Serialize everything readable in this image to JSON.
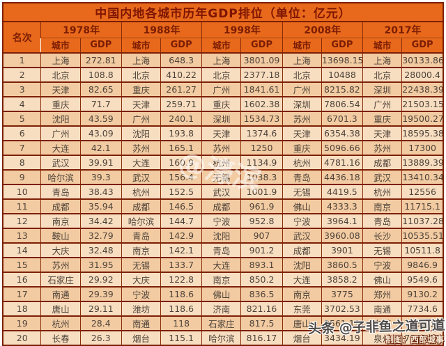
{
  "title": "中国内地各城市历年GDP排位（单位：亿元）",
  "table": {
    "rank_header": "名次",
    "city_header": "城市",
    "gdp_header": "GDP",
    "years": [
      "1978年",
      "1988年",
      "1998年",
      "2008年",
      "2017年"
    ]
  },
  "watermarks": {
    "center": "@濠滨",
    "bottom_right_line1": "头条 @子非鱼之道可道",
    "bottom_right_line2": "制图：西部城事"
  },
  "colors": {
    "header_bg": "#e8691b",
    "title_text": "#7e1502",
    "header_text": "#7b1d04",
    "row_odd_bg": "#f2cba2",
    "row_even_bg": "#f8dec1",
    "border": "#7c2007",
    "cell_text": "#4e4339"
  },
  "chart_data": {
    "type": "table",
    "title": "中国内地各城市历年GDP排位（单位：亿元）",
    "columns": [
      "名次",
      "1978年 城市",
      "1978年 GDP",
      "1988年 城市",
      "1988年 GDP",
      "1998年 城市",
      "1998年 GDP",
      "2008年 城市",
      "2008年 GDP",
      "2017年 城市",
      "2017年 GDP"
    ],
    "rows": [
      [
        "1",
        "上海",
        "272.81",
        "上海",
        "648.3",
        "上海",
        "3801.09",
        "上海",
        "13698.15",
        "上海",
        "30133.86"
      ],
      [
        "2",
        "北京",
        "108.8",
        "北京",
        "410.22",
        "北京",
        "2377.18",
        "北京",
        "10488",
        "北京",
        "28000.4"
      ],
      [
        "3",
        "天津",
        "82.65",
        "重庆",
        "261.27",
        "广州",
        "1841.61",
        "广州",
        "8215.82",
        "深圳",
        "22438.39"
      ],
      [
        "4",
        "重庆",
        "71.7",
        "天津",
        "259.71",
        "重庆",
        "1602.38",
        "深圳",
        "7806.54",
        "广州",
        "21503.15"
      ],
      [
        "5",
        "沈阳",
        "43.59",
        "广州",
        "240.1",
        "深圳",
        "1534.73",
        "苏州",
        "6701.3",
        "重庆",
        "19500.27"
      ],
      [
        "6",
        "广州",
        "43.09",
        "沈阳",
        "193.8",
        "天津",
        "1374.6",
        "天津",
        "6354.38",
        "天津",
        "18595.38"
      ],
      [
        "7",
        "大连",
        "42.1",
        "苏州",
        "165.1",
        "苏州",
        "1250",
        "重庆",
        "5096.66",
        "苏州",
        "17300"
      ],
      [
        "8",
        "武汉",
        "39.91",
        "大连",
        "160.9",
        "杭州",
        "1134.9",
        "杭州",
        "4781.16",
        "成都",
        "13889.39"
      ],
      [
        "9",
        "哈尔滨",
        "39.3",
        "武汉",
        "156.4",
        "无锡",
        "1038.3",
        "青岛",
        "4436.18",
        "武汉",
        "13410.34"
      ],
      [
        "10",
        "青岛",
        "38.43",
        "杭州",
        "152.5",
        "武汉",
        "1001.9",
        "无锡",
        "4419.5",
        "杭州",
        "12556"
      ],
      [
        "11",
        "成都",
        "35.94",
        "成都",
        "146.5",
        "成都",
        "961.9",
        "佛山",
        "4333.3",
        "南京",
        "11715.1"
      ],
      [
        "12",
        "南京",
        "34.42",
        "哈尔滨",
        "144.7",
        "宁波",
        "952.8",
        "宁波",
        "3964.1",
        "青岛",
        "11037.28"
      ],
      [
        "13",
        "鞍山",
        "32.79",
        "青岛",
        "142.9",
        "沈阳",
        "907",
        "武汉",
        "3960.08",
        "长沙",
        "10535.51"
      ],
      [
        "14",
        "大庆",
        "32.48",
        "南京",
        "142.1",
        "青岛",
        "901.2",
        "成都",
        "3901",
        "无锡",
        "10511.8"
      ],
      [
        "15",
        "苏州",
        "31.95",
        "无锡",
        "133.7",
        "大连",
        "893.1",
        "沈阳",
        "3860.5",
        "宁波",
        "9846.9"
      ],
      [
        "16",
        "石家庄",
        "29.92",
        "大庆",
        "122.8",
        "南京",
        "850.2",
        "大连",
        "3858.2",
        "佛山",
        "9549.6"
      ],
      [
        "17",
        "南通",
        "29.39",
        "宁波",
        "118.6",
        "佛山",
        "836.5",
        "南京",
        "3775",
        "郑州",
        "9130.2"
      ],
      [
        "18",
        "唐山",
        "29.11",
        "潍坊",
        "118.6",
        "济南",
        "821.16",
        "东莞",
        "3702.53",
        "南通",
        "7734.6"
      ],
      [
        "19",
        "杭州",
        "28.4",
        "南通",
        "118",
        "石家庄",
        "817.5",
        "唐山",
        "3561.19",
        "东莞",
        "7582.12"
      ],
      [
        "20",
        "长春",
        "26.3",
        "烟台",
        "115.1",
        "哈尔滨",
        "816.17",
        "烟台",
        "3434.19",
        "泉州",
        "7548.01"
      ]
    ]
  }
}
